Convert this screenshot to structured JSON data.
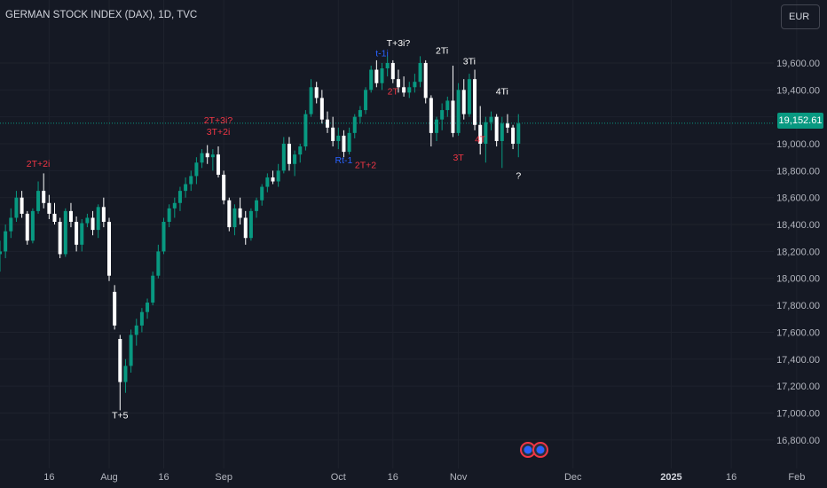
{
  "title": "GERMAN STOCK INDEX (DAX), 1D, TVC",
  "currency_button": "EUR",
  "last_price": "19,152.61",
  "colors": {
    "background": "#151924",
    "up": "#089981",
    "down": "#ffffff",
    "annotation_red": "#f23645",
    "annotation_blue": "#2962ff",
    "annotation_white": "#ffffff",
    "price_line": "#089981"
  },
  "chart_data": {
    "type": "candlestick",
    "ylim": [
      16700,
      19870
    ],
    "yticks": [
      "16,800.00",
      "17,000.00",
      "17,200.00",
      "17,400.00",
      "17,600.00",
      "17,800.00",
      "18,000.00",
      "18,200.00",
      "18,400.00",
      "18,600.00",
      "18,800.00",
      "19,000.00",
      "19,200.00",
      "19,400.00",
      "19,600.00"
    ],
    "ytick_values": [
      16800,
      17000,
      17200,
      17400,
      17600,
      17800,
      18000,
      18200,
      18400,
      18600,
      18800,
      19000,
      19200,
      19400,
      19600
    ],
    "xticks": [
      {
        "label": "16",
        "bar": 9
      },
      {
        "label": "Aug",
        "bar": 20
      },
      {
        "label": "16",
        "bar": 30
      },
      {
        "label": "Sep",
        "bar": 41
      },
      {
        "label": "Oct",
        "bar": 62
      },
      {
        "label": "16",
        "bar": 72
      },
      {
        "label": "Nov",
        "bar": 84
      },
      {
        "label": "Dec",
        "bar": 105
      },
      {
        "label": "2025",
        "bar": 123
      },
      {
        "label": "16",
        "bar": 134
      },
      {
        "label": "Feb",
        "bar": 146
      }
    ],
    "last_price": 19152.61,
    "candles": [
      [
        18180,
        18280,
        18050,
        18200
      ],
      [
        18200,
        18400,
        18150,
        18350
      ],
      [
        18350,
        18520,
        18300,
        18450
      ],
      [
        18450,
        18650,
        18420,
        18600
      ],
      [
        18600,
        18650,
        18450,
        18480
      ],
      [
        18480,
        18500,
        18250,
        18280
      ],
      [
        18280,
        18520,
        18260,
        18500
      ],
      [
        18500,
        18720,
        18480,
        18650
      ],
      [
        18650,
        18780,
        18520,
        18560
      ],
      [
        18560,
        18620,
        18440,
        18480
      ],
      [
        18480,
        18560,
        18400,
        18420
      ],
      [
        18420,
        18450,
        18150,
        18180
      ],
      [
        18180,
        18520,
        18160,
        18500
      ],
      [
        18500,
        18560,
        18380,
        18420
      ],
      [
        18420,
        18460,
        18200,
        18250
      ],
      [
        18250,
        18440,
        18200,
        18410
      ],
      [
        18410,
        18480,
        18380,
        18450
      ],
      [
        18450,
        18500,
        18320,
        18360
      ],
      [
        18360,
        18550,
        18300,
        18530
      ],
      [
        18530,
        18600,
        18380,
        18420
      ],
      [
        18420,
        18450,
        17980,
        18020
      ],
      [
        17900,
        17950,
        17620,
        17650
      ],
      [
        17550,
        17580,
        17020,
        17230
      ],
      [
        17230,
        17400,
        17150,
        17350
      ],
      [
        17350,
        17620,
        17300,
        17580
      ],
      [
        17580,
        17700,
        17500,
        17650
      ],
      [
        17650,
        17780,
        17600,
        17750
      ],
      [
        17750,
        17850,
        17700,
        17820
      ],
      [
        17820,
        18050,
        17800,
        18020
      ],
      [
        18020,
        18250,
        18000,
        18200
      ],
      [
        18200,
        18450,
        18180,
        18420
      ],
      [
        18420,
        18550,
        18380,
        18520
      ],
      [
        18520,
        18600,
        18450,
        18560
      ],
      [
        18560,
        18680,
        18500,
        18650
      ],
      [
        18650,
        18750,
        18600,
        18700
      ],
      [
        18700,
        18800,
        18650,
        18760
      ],
      [
        18760,
        18900,
        18700,
        18860
      ],
      [
        18860,
        18960,
        18820,
        18930
      ],
      [
        18930,
        18990,
        18850,
        18900
      ],
      [
        18900,
        18960,
        18800,
        18920
      ],
      [
        18920,
        18980,
        18750,
        18770
      ],
      [
        18770,
        18800,
        18550,
        18580
      ],
      [
        18580,
        18600,
        18350,
        18380
      ],
      [
        18380,
        18550,
        18320,
        18520
      ],
      [
        18520,
        18600,
        18400,
        18450
      ],
      [
        18450,
        18500,
        18250,
        18300
      ],
      [
        18300,
        18520,
        18280,
        18500
      ],
      [
        18500,
        18600,
        18450,
        18580
      ],
      [
        18580,
        18700,
        18540,
        18680
      ],
      [
        18680,
        18780,
        18640,
        18750
      ],
      [
        18750,
        18800,
        18700,
        18720
      ],
      [
        18720,
        18850,
        18680,
        18800
      ],
      [
        18800,
        19050,
        18780,
        19000
      ],
      [
        19000,
        19050,
        18800,
        18850
      ],
      [
        18850,
        18950,
        18760,
        18920
      ],
      [
        18920,
        19000,
        18860,
        18980
      ],
      [
        18980,
        19250,
        18950,
        19220
      ],
      [
        19220,
        19480,
        19200,
        19420
      ],
      [
        19420,
        19460,
        19300,
        19340
      ],
      [
        19340,
        19400,
        19150,
        19180
      ],
      [
        19180,
        19240,
        19080,
        19120
      ],
      [
        19120,
        19200,
        18980,
        19020
      ],
      [
        19020,
        19120,
        18960,
        19060
      ],
      [
        19060,
        19100,
        18900,
        18940
      ],
      [
        18940,
        19120,
        18920,
        19080
      ],
      [
        19080,
        19220,
        19040,
        19200
      ],
      [
        19200,
        19280,
        19150,
        19250
      ],
      [
        19250,
        19420,
        19220,
        19400
      ],
      [
        19400,
        19580,
        19380,
        19550
      ],
      [
        19550,
        19620,
        19420,
        19450
      ],
      [
        19450,
        19600,
        19400,
        19560
      ],
      [
        19560,
        19650,
        19500,
        19600
      ],
      [
        19600,
        19620,
        19450,
        19480
      ],
      [
        19480,
        19550,
        19380,
        19420
      ],
      [
        19420,
        19500,
        19350,
        19380
      ],
      [
        19380,
        19460,
        19340,
        19420
      ],
      [
        19420,
        19520,
        19380,
        19460
      ],
      [
        19460,
        19650,
        19420,
        19600
      ],
      [
        19600,
        19620,
        19300,
        19340
      ],
      [
        19340,
        19360,
        18980,
        19080
      ],
      [
        19080,
        19200,
        19020,
        19180
      ],
      [
        19180,
        19300,
        19100,
        19250
      ],
      [
        19250,
        19350,
        19200,
        19320
      ],
      [
        19320,
        19580,
        19050,
        19080
      ],
      [
        19080,
        19450,
        19060,
        19400
      ],
      [
        19400,
        19480,
        19180,
        19220
      ],
      [
        19220,
        19520,
        19200,
        19480
      ],
      [
        19480,
        19550,
        19100,
        19140
      ],
      [
        19140,
        19280,
        18920,
        19000
      ],
      [
        19000,
        19200,
        18860,
        19160
      ],
      [
        19160,
        19240,
        19100,
        19200
      ],
      [
        19200,
        19220,
        18980,
        19020
      ],
      [
        19020,
        19200,
        18820,
        19150
      ],
      [
        19150,
        19220,
        19080,
        19120
      ],
      [
        19120,
        19140,
        18960,
        19000
      ],
      [
        19000,
        19220,
        18900,
        19150
      ]
    ],
    "annotations": [
      {
        "text": "2T+2i",
        "bar": 7,
        "price": 18830,
        "color": "red"
      },
      {
        "text": "T+5",
        "bar": 22,
        "price": 16960,
        "color": "white"
      },
      {
        "text": "2T+3i?",
        "bar": 40,
        "price": 19150,
        "color": "red"
      },
      {
        "text": "3T+2i",
        "bar": 40,
        "price": 19065,
        "color": "red"
      },
      {
        "text": "Rt-1",
        "bar": 63,
        "price": 18855,
        "color": "blue"
      },
      {
        "text": "2T+2",
        "bar": 67,
        "price": 18820,
        "color": "red"
      },
      {
        "text": "t-1i",
        "bar": 70,
        "price": 19650,
        "color": "blue"
      },
      {
        "text": "T+3i?",
        "bar": 73,
        "price": 19725,
        "color": "white"
      },
      {
        "text": "2T",
        "bar": 72,
        "price": 19365,
        "color": "red"
      },
      {
        "text": "2Ti",
        "bar": 81,
        "price": 19670,
        "color": "white"
      },
      {
        "text": "3Ti",
        "bar": 86,
        "price": 19590,
        "color": "white"
      },
      {
        "text": "3T",
        "bar": 84,
        "price": 18875,
        "color": "red"
      },
      {
        "text": "4T",
        "bar": 88,
        "price": 19010,
        "color": "red"
      },
      {
        "text": "4Ti",
        "bar": 92,
        "price": 19365,
        "color": "white"
      },
      {
        "text": "?",
        "bar": 95,
        "price": 18740,
        "color": "white"
      }
    ],
    "event_markers": 2
  }
}
